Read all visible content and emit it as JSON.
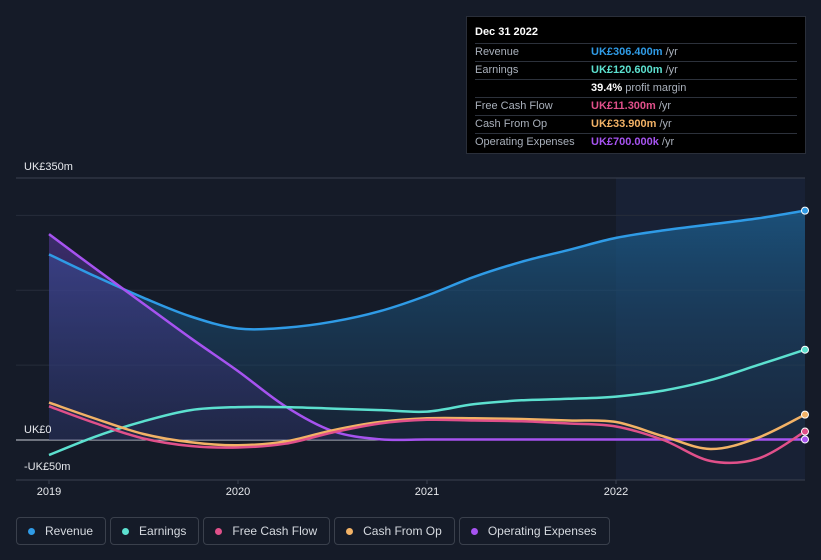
{
  "tooltip": {
    "date": "Dec 31 2022",
    "rows": [
      {
        "label": "Revenue",
        "value": "UK£306.400m",
        "unit": "/yr",
        "color": "#2f9be6"
      },
      {
        "label": "Earnings",
        "value": "UK£120.600m",
        "unit": "/yr",
        "color": "#5ce0cf"
      },
      {
        "label": "",
        "value": "39.4%",
        "unit": "profit margin",
        "color": "#ffffff"
      },
      {
        "label": "Free Cash Flow",
        "value": "UK£11.300m",
        "unit": "/yr",
        "color": "#e0508a"
      },
      {
        "label": "Cash From Op",
        "value": "UK£33.900m",
        "unit": "/yr",
        "color": "#f2b266"
      },
      {
        "label": "Operating Expenses",
        "value": "UK£700.000k",
        "unit": "/yr",
        "color": "#a653f0"
      }
    ]
  },
  "chart_data": {
    "type": "line",
    "y_axis_labels": {
      "top": "UK£350m",
      "zero": "UK£0",
      "bottom": "-UK£50m"
    },
    "ylim": [
      -50,
      350
    ],
    "x_ticks": [
      "2019",
      "2020",
      "2021",
      "2022"
    ],
    "x_tick_values": [
      2019,
      2020,
      2021,
      2022
    ],
    "xlim": [
      2018.83,
      2023
    ],
    "series": [
      {
        "name": "Revenue",
        "color": "#2f9be6",
        "fill": true,
        "x": [
          2019,
          2019.25,
          2019.5,
          2019.75,
          2020,
          2020.25,
          2020.5,
          2020.75,
          2021,
          2021.25,
          2021.5,
          2021.75,
          2022,
          2022.25,
          2022.5,
          2022.75,
          2023
        ],
        "values": [
          248,
          218,
          190,
          165,
          149,
          150,
          158,
          172,
          193,
          218,
          238,
          254,
          270,
          280,
          288,
          296,
          306.4
        ]
      },
      {
        "name": "Earnings",
        "color": "#5ce0cf",
        "fill": false,
        "x": [
          2019,
          2019.25,
          2019.5,
          2019.75,
          2020,
          2020.25,
          2020.5,
          2020.75,
          2021,
          2021.25,
          2021.5,
          2021.75,
          2022,
          2022.25,
          2022.5,
          2022.75,
          2023
        ],
        "values": [
          -20,
          5,
          25,
          40,
          44,
          44,
          42,
          40,
          38,
          48,
          53,
          55,
          58,
          66,
          80,
          100,
          120.6
        ]
      },
      {
        "name": "Free Cash Flow",
        "color": "#e0508a",
        "fill": false,
        "x": [
          2019,
          2019.25,
          2019.5,
          2019.75,
          2020,
          2020.25,
          2020.5,
          2020.75,
          2021,
          2021.25,
          2021.5,
          2021.75,
          2022,
          2022.25,
          2022.5,
          2022.75,
          2023
        ],
        "values": [
          45,
          22,
          2,
          -8,
          -10,
          -5,
          10,
          22,
          27,
          26,
          25,
          22,
          18,
          0,
          -28,
          -25,
          11.3
        ]
      },
      {
        "name": "Cash From Op",
        "color": "#f2b266",
        "fill": false,
        "x": [
          2019,
          2019.25,
          2019.5,
          2019.75,
          2020,
          2020.25,
          2020.5,
          2020.75,
          2021,
          2021.25,
          2021.5,
          2021.75,
          2022,
          2022.25,
          2022.5,
          2022.75,
          2023
        ],
        "values": [
          50,
          28,
          8,
          -3,
          -7,
          -2,
          13,
          24,
          29,
          29,
          28,
          26,
          24,
          5,
          -12,
          3,
          33.9
        ]
      },
      {
        "name": "Operating Expenses",
        "color": "#a653f0",
        "fill": true,
        "x": [
          2019,
          2019.25,
          2019.5,
          2019.75,
          2020,
          2020.25,
          2020.5,
          2020.75,
          2021,
          2021.25,
          2021.5,
          2021.75,
          2022,
          2022.25,
          2022.5,
          2022.75,
          2023
        ],
        "values": [
          275,
          228,
          182,
          136,
          92,
          45,
          12,
          1,
          0.7,
          0.7,
          0.7,
          0.7,
          0.7,
          0.7,
          0.7,
          0.7,
          0.7
        ]
      }
    ],
    "legend_position": "bottom",
    "grid": true
  },
  "legend": [
    {
      "label": "Revenue",
      "color": "#2f9be6"
    },
    {
      "label": "Earnings",
      "color": "#5ce0cf"
    },
    {
      "label": "Free Cash Flow",
      "color": "#e0508a"
    },
    {
      "label": "Cash From Op",
      "color": "#f2b266"
    },
    {
      "label": "Operating Expenses",
      "color": "#a653f0"
    }
  ]
}
